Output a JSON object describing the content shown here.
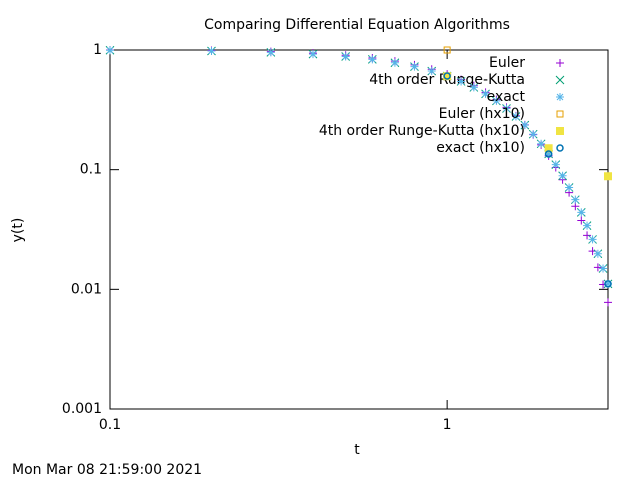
{
  "chart_data": {
    "type": "scatter",
    "title": "Comparing Differential Equation Algorithms",
    "xlabel": "t",
    "ylabel": "y(t)",
    "timestamp": "Mon Mar 08 21:59:00 2021",
    "log_x": true,
    "log_y": true,
    "legend": "top-right",
    "xlim": [
      0.1,
      3
    ],
    "ylim": [
      0.001,
      1
    ],
    "xticks": [
      0.1,
      1
    ],
    "yticks": [
      0.001,
      0.01,
      0.1,
      1
    ],
    "series": [
      {
        "name": "Euler",
        "color": "#9400d3",
        "marker": "plus",
        "x": [
          0.1,
          0.2,
          0.3,
          0.4,
          0.5,
          0.6,
          0.7,
          0.8,
          0.9,
          1.0,
          1.1,
          1.2,
          1.3,
          1.4,
          1.5,
          1.6,
          1.7,
          1.8,
          1.9,
          2.0,
          2.1,
          2.2,
          2.3,
          2.4,
          2.5,
          2.6,
          2.7,
          2.8,
          2.9,
          3.0
        ],
        "values": [
          1,
          0.99,
          0.9702,
          0.94109,
          0.90345,
          0.85828,
          0.80678,
          0.75031,
          0.69028,
          0.62816,
          0.56534,
          0.50315,
          0.44277,
          0.38521,
          0.33128,
          0.28159,
          0.23653,
          0.19632,
          0.16098,
          0.1304,
          0.10432,
          0.08241,
          0.06428,
          0.0495,
          0.03762,
          0.02821,
          0.02088,
          0.01524,
          0.01097,
          0.00779
        ]
      },
      {
        "name": "4th order Runge-Kutta",
        "color": "#009e73",
        "marker": "cross",
        "x": [
          0.1,
          0.2,
          0.3,
          0.4,
          0.5,
          0.6,
          0.7,
          0.8,
          0.9,
          1.0,
          1.1,
          1.2,
          1.3,
          1.4,
          1.5,
          1.6,
          1.7,
          1.8,
          1.9,
          2.0,
          2.1,
          2.2,
          2.3,
          2.4,
          2.5,
          2.6,
          2.7,
          2.8,
          2.9,
          3.0
        ],
        "values": [
          0.99501,
          0.9802,
          0.956,
          0.92312,
          0.8825,
          0.83527,
          0.7827,
          0.72615,
          0.66698,
          0.60653,
          0.54607,
          0.48675,
          0.42956,
          0.37531,
          0.32465,
          0.27804,
          0.23575,
          0.1979,
          0.16447,
          0.13534,
          0.11025,
          0.08892,
          0.071,
          0.05613,
          0.04394,
          0.03405,
          0.02612,
          0.01984,
          0.01492,
          0.01111
        ]
      },
      {
        "name": "exact",
        "color": "#56b4e9",
        "marker": "star",
        "x": [
          0.1,
          0.2,
          0.3,
          0.4,
          0.5,
          0.6,
          0.7,
          0.8,
          0.9,
          1.0,
          1.1,
          1.2,
          1.3,
          1.4,
          1.5,
          1.6,
          1.7,
          1.8,
          1.9,
          2.0,
          2.1,
          2.2,
          2.3,
          2.4,
          2.5,
          2.6,
          2.7,
          2.8,
          2.9,
          3.0
        ],
        "values": [
          0.99501,
          0.9802,
          0.956,
          0.92312,
          0.8825,
          0.83527,
          0.7827,
          0.72615,
          0.66698,
          0.60653,
          0.54607,
          0.48675,
          0.42956,
          0.37531,
          0.32465,
          0.27804,
          0.23575,
          0.1979,
          0.16447,
          0.13534,
          0.11025,
          0.08892,
          0.071,
          0.05613,
          0.04394,
          0.03405,
          0.02612,
          0.01984,
          0.01492,
          0.01111
        ]
      },
      {
        "name": "Euler (hx10)",
        "color": "#e69f00",
        "marker": "square",
        "x": [
          1
        ],
        "values": [
          1
        ]
      },
      {
        "name": "4th order Runge-Kutta (hx10)",
        "color": "#f0e442",
        "marker": "filled-square",
        "x": [
          1,
          2,
          3
        ],
        "values": [
          0.6042,
          0.151,
          0.0881
        ]
      },
      {
        "name": "exact (hx10)",
        "color": "#0072b2",
        "marker": "circle",
        "x": [
          1,
          2,
          3
        ],
        "values": [
          0.60653,
          0.13534,
          0.01111
        ]
      }
    ]
  }
}
